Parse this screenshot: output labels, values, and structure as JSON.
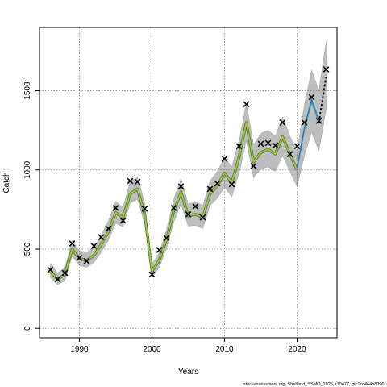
{
  "chart_data": {
    "type": "line",
    "xlabel": "Years",
    "ylabel": "Catch",
    "xlim": [
      1984.5,
      2025.5
    ],
    "ylim": [
      -60,
      1900
    ],
    "xticks": [
      1990,
      2000,
      2010,
      2020
    ],
    "yticks": [
      0,
      500,
      1000,
      1500
    ],
    "grid": true,
    "footer": "stockassessment.org, Shetland_SSMO_2025, r19477, git:1cc464b8096f",
    "colors": {
      "band": "#bebebe",
      "band_edge": "#8c8c8c",
      "fit_outer": "#4a7a3a",
      "fit_inner": "#a8c23a",
      "forecast_blue": "#2f6fd0",
      "forecast_cyan": "#22b6c8",
      "forecast_green": "#3a9a3a",
      "forecast_dashed": "#000000",
      "observed": "#000000",
      "grid": "#7f7f7f"
    },
    "fit": {
      "x": [
        1986,
        1987,
        1988,
        1989,
        1990,
        1991,
        1992,
        1993,
        1994,
        1995,
        1996,
        1997,
        1998,
        1999,
        2000,
        2001,
        2002,
        2003,
        2004,
        2005,
        2006,
        2007,
        2008,
        2009,
        2010,
        2011,
        2012,
        2013,
        2014,
        2015,
        2016,
        2017,
        2018,
        2019,
        2020
      ],
      "y": [
        360,
        310,
        340,
        500,
        440,
        430,
        460,
        530,
        610,
        730,
        700,
        850,
        880,
        720,
        360,
        430,
        560,
        740,
        860,
        710,
        720,
        700,
        850,
        900,
        980,
        920,
        1080,
        1300,
        1050,
        1110,
        1130,
        1100,
        1210,
        1100,
        1000
      ],
      "lower": [
        320,
        275,
        300,
        455,
        395,
        385,
        415,
        480,
        555,
        665,
        640,
        790,
        815,
        660,
        320,
        385,
        505,
        670,
        785,
        645,
        650,
        630,
        775,
        820,
        890,
        830,
        980,
        1185,
        950,
        1005,
        1020,
        990,
        1090,
        990,
        895
      ],
      "upper": [
        410,
        350,
        385,
        550,
        490,
        480,
        510,
        590,
        680,
        800,
        765,
        925,
        955,
        790,
        405,
        480,
        620,
        815,
        945,
        785,
        800,
        775,
        930,
        990,
        1080,
        1020,
        1185,
        1420,
        1160,
        1230,
        1250,
        1215,
        1335,
        1215,
        1115
      ]
    },
    "forecast": {
      "x": [
        2020,
        2021,
        2022,
        2023,
        2024
      ],
      "y": [
        1000,
        1250,
        1430,
        1300,
        1590
      ],
      "lower": [
        895,
        1090,
        1240,
        1120,
        1380
      ],
      "upper": [
        1115,
        1410,
        1630,
        1500,
        1810
      ]
    },
    "observed": {
      "x": [
        1986,
        1987,
        1988,
        1989,
        1990,
        1991,
        1992,
        1993,
        1994,
        1995,
        1996,
        1997,
        1998,
        1999,
        2000,
        2001,
        2002,
        2003,
        2004,
        2005,
        2006,
        2007,
        2008,
        2009,
        2010,
        2011,
        2012,
        2013,
        2014,
        2015,
        2016,
        2017,
        2018,
        2019,
        2020,
        2021,
        2022,
        2023,
        2024
      ],
      "y": [
        370,
        310,
        350,
        535,
        445,
        425,
        520,
        575,
        630,
        760,
        680,
        930,
        925,
        755,
        340,
        495,
        570,
        760,
        895,
        720,
        770,
        700,
        880,
        915,
        1070,
        910,
        1150,
        1415,
        1025,
        1165,
        1170,
        1155,
        1300,
        1100,
        1150,
        1300,
        1460,
        1310,
        1635
      ]
    }
  }
}
